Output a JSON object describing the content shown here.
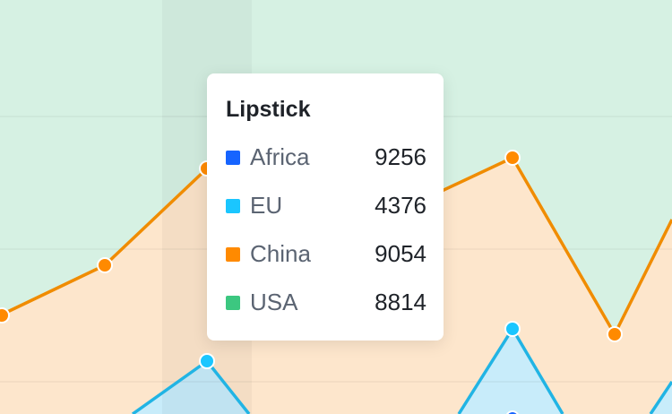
{
  "chart_data": {
    "type": "area",
    "hovered_category": "Lipstick",
    "series": [
      {
        "name": "Africa",
        "color": "#1664ff"
      },
      {
        "name": "EU",
        "color": "#1ac6ff"
      },
      {
        "name": "China",
        "color": "#ff8a00"
      },
      {
        "name": "USA",
        "color": "#3cc780"
      }
    ],
    "tooltip": {
      "title": "Lipstick",
      "rows": [
        {
          "name": "Africa",
          "value": "9256",
          "color": "#1664ff"
        },
        {
          "name": "EU",
          "value": "4376",
          "color": "#1ac6ff"
        },
        {
          "name": "China",
          "value": "9054",
          "color": "#ff8a00"
        },
        {
          "name": "USA",
          "value": "8814",
          "color": "#3cc780"
        }
      ]
    },
    "grid": true
  }
}
